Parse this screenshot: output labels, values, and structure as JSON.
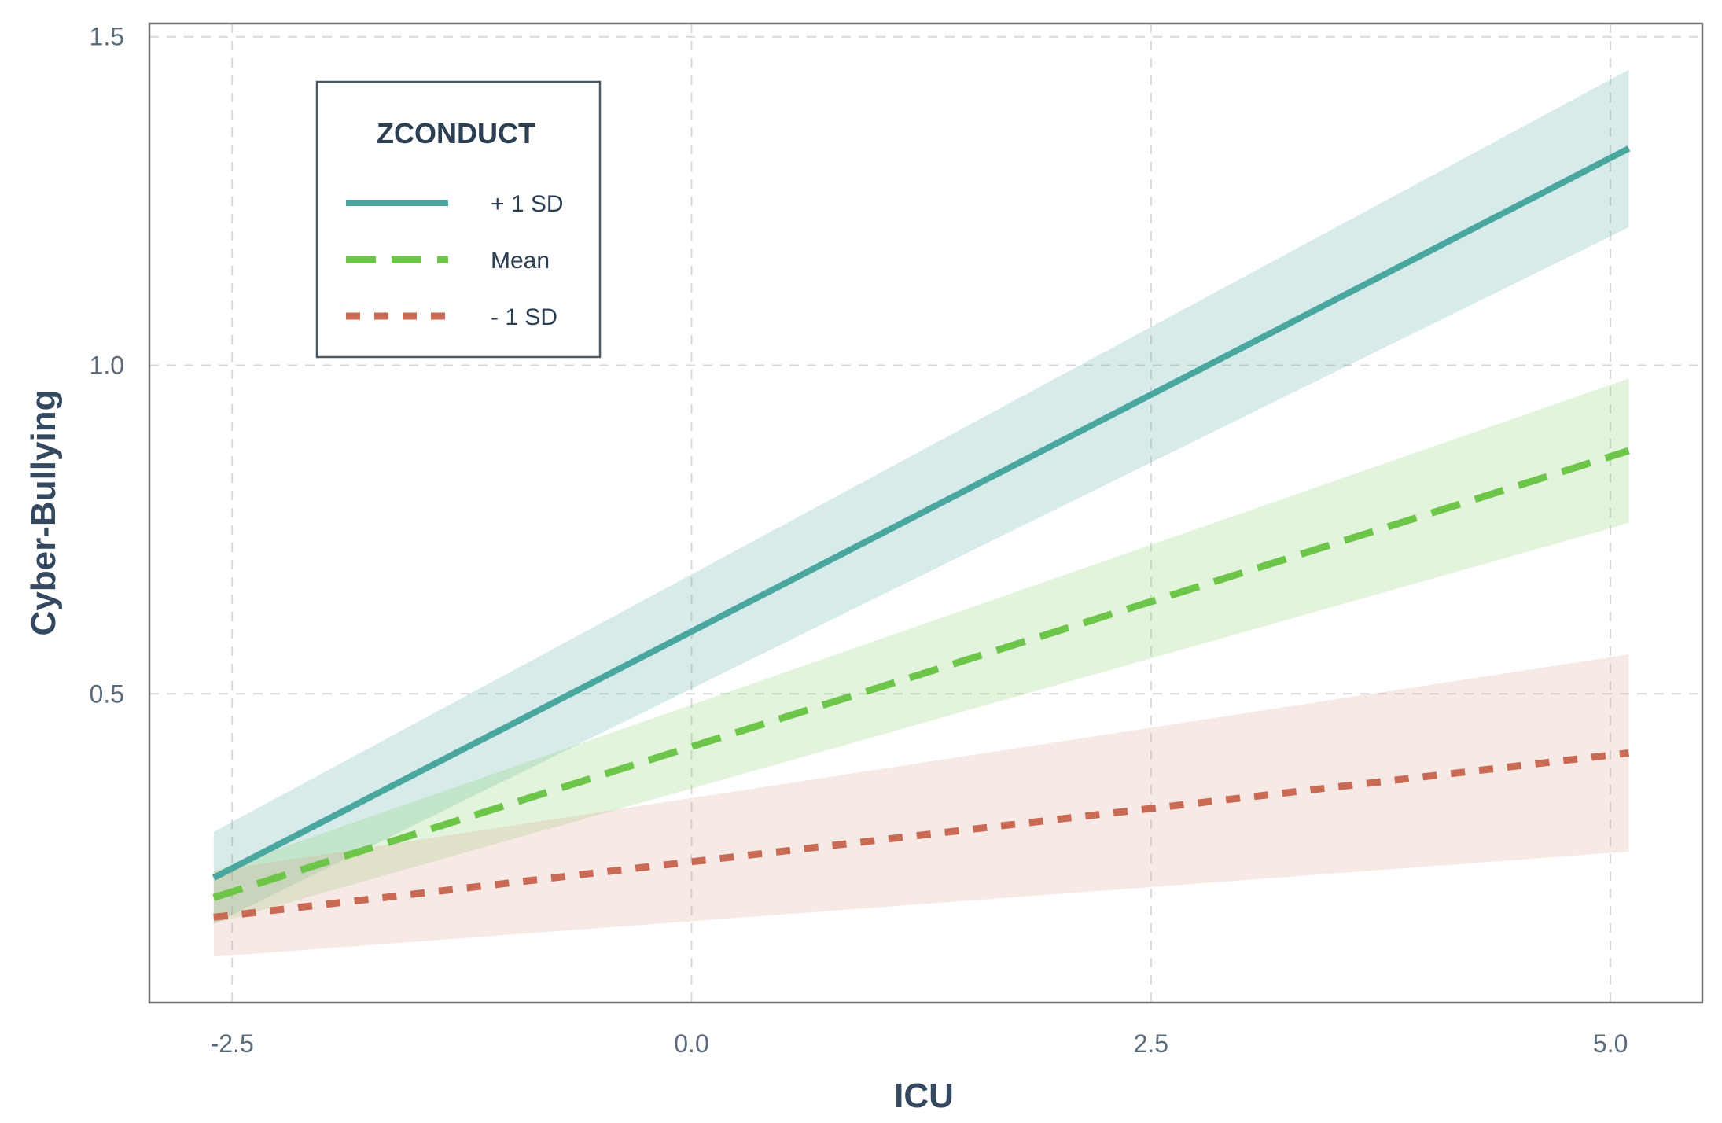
{
  "chart_data": {
    "type": "line",
    "xlabel": "ICU",
    "ylabel": "Cyber-Bullying",
    "xlim": [
      -2.95,
      5.5
    ],
    "ylim": [
      0.03,
      1.52
    ],
    "x_ticks": [
      -2.5,
      0.0,
      2.5,
      5.0
    ],
    "x_tick_labels": [
      "-2.5",
      "0.0",
      "2.5",
      "5.0"
    ],
    "y_ticks": [
      0.5,
      1.0,
      1.5
    ],
    "y_tick_labels": [
      "0.5",
      "1.0",
      "1.5"
    ],
    "grid": true,
    "legend": {
      "title": "ZCONDUCT",
      "placement": "top-left"
    },
    "series": [
      {
        "name": "+ 1 SD",
        "style": "solid",
        "color": "#4aa79f",
        "band_color": "#4aa79f",
        "x": [
          -2.6,
          5.1
        ],
        "y": [
          0.22,
          1.33
        ],
        "ci_lower": [
          0.15,
          1.21
        ],
        "ci_upper": [
          0.29,
          1.45
        ]
      },
      {
        "name": "Mean",
        "style": "dashed",
        "color": "#6dc64a",
        "band_color": "#7fcf5f",
        "x": [
          -2.6,
          5.1
        ],
        "y": [
          0.19,
          0.87
        ],
        "ci_lower": [
          0.15,
          0.76
        ],
        "ci_upper": [
          0.23,
          0.98
        ]
      },
      {
        "name": "- 1 SD",
        "style": "dotted",
        "color": "#c96a55",
        "band_color": "#d99a8a",
        "x": [
          -2.6,
          5.1
        ],
        "y": [
          0.16,
          0.41
        ],
        "ci_lower": [
          0.1,
          0.26
        ],
        "ci_upper": [
          0.23,
          0.56
        ]
      }
    ]
  }
}
